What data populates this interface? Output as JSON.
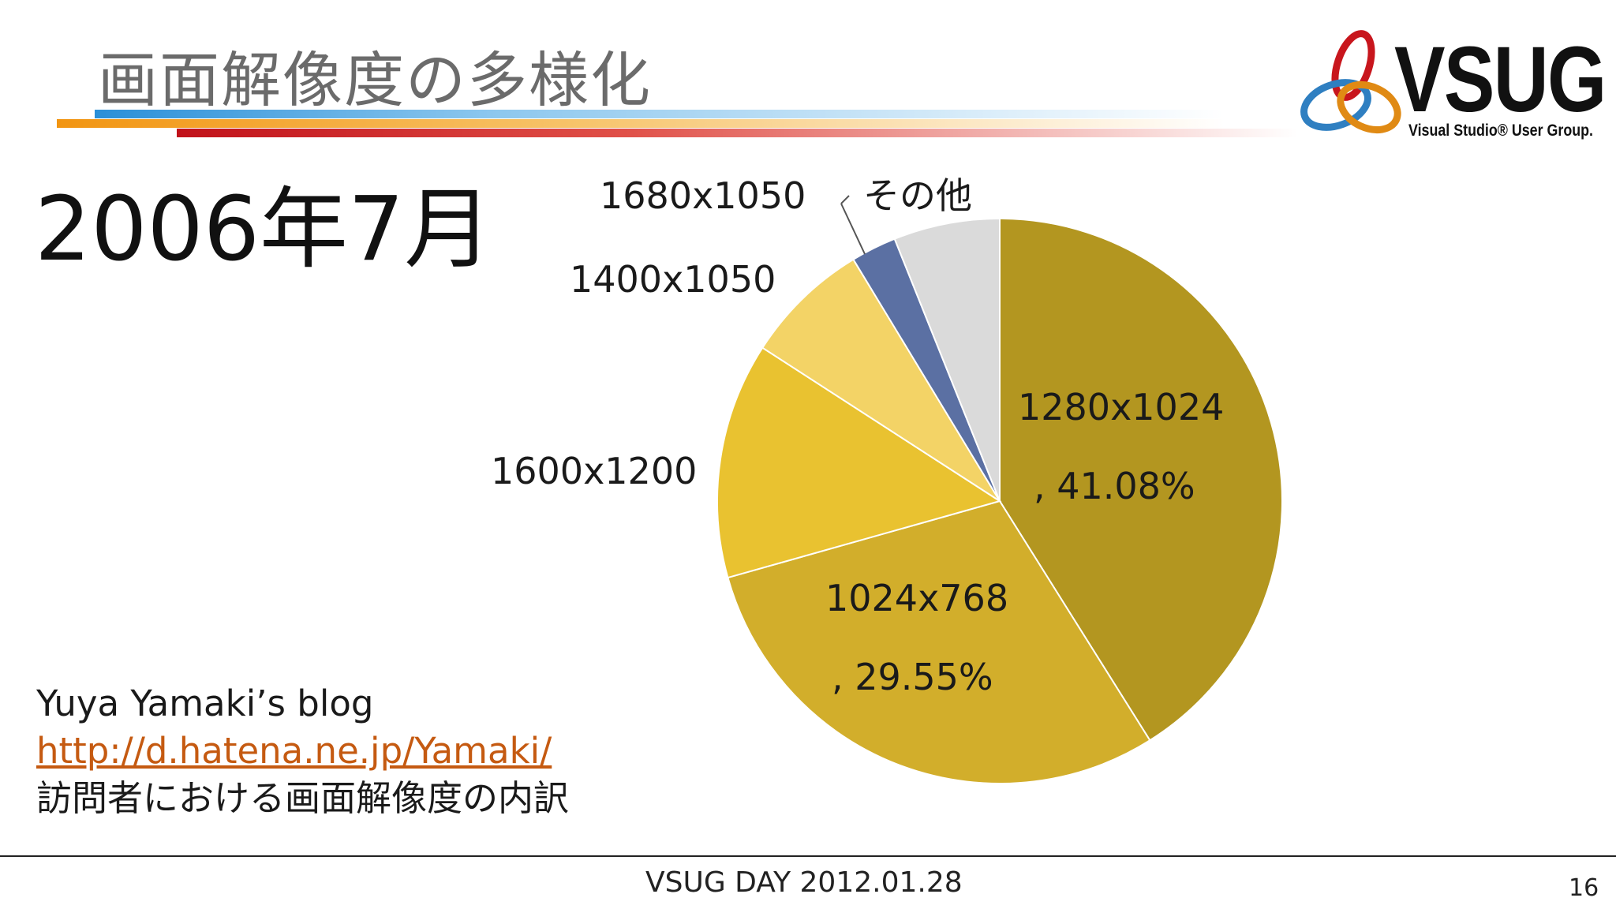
{
  "slide": {
    "title": "画面解像度の多様化",
    "date_heading": "2006年7月",
    "logo_word": "VSUG",
    "logo_sub": "Visual Studio® User Group.",
    "source": {
      "line1": "Yuya Yamaki’s blog",
      "link": "http://d.hatena.ne.jp/Yamaki/",
      "line3": "訪問者における画面解像度の内訳"
    },
    "footer": "VSUG DAY 2012.01.28",
    "page_number": "16"
  },
  "chart_data": {
    "type": "pie",
    "slices": [
      {
        "name": "1280x1024",
        "value": 41.08,
        "color": "#b39620"
      },
      {
        "name": "1024x768",
        "value": 29.55,
        "color": "#d2ae2b"
      },
      {
        "name": "1600x1200",
        "value": 13.5,
        "color": "#e9c230"
      },
      {
        "name": "1400x1050",
        "value": 7.2,
        "color": "#f3d366"
      },
      {
        "name": "1680x1050",
        "value": 2.6,
        "color": "#5b70a3"
      },
      {
        "name": "その他",
        "value": 6.07,
        "color": "#dadada"
      }
    ],
    "labels": {
      "s1_name": "1280x1024",
      "s1_pct": ", 41.08%",
      "s2_name": "1024x768",
      "s2_pct": ", 29.55%",
      "s3_name": "1600x1200",
      "s4_name": "1400x1050",
      "s5_name": "1680x1050",
      "s6_name": "その他"
    }
  }
}
